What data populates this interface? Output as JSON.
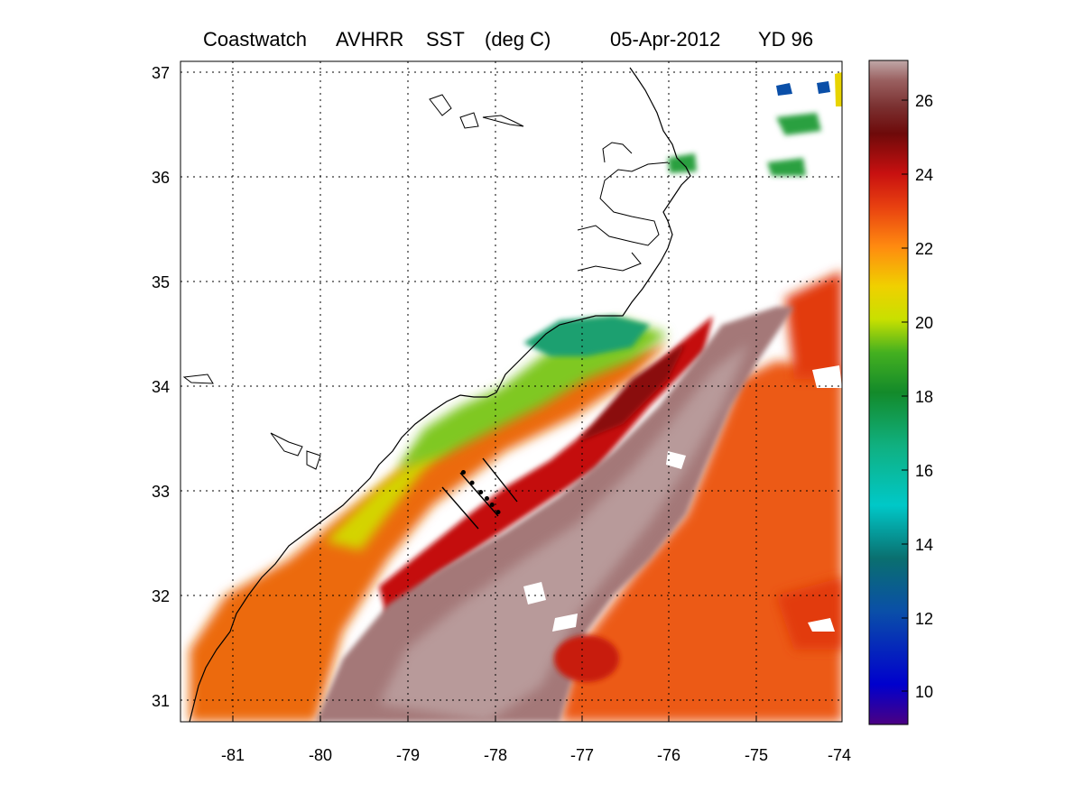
{
  "title": {
    "product": "Coastwatch",
    "sensor": "AVHRR",
    "variable": "SST",
    "units": "(deg C)",
    "date": "05-Apr-2012",
    "yearday": "YD 96"
  },
  "map": {
    "lon_range": [
      -81.6,
      -74
    ],
    "lat_range": [
      30.8,
      37.1
    ],
    "lon_ticks": [
      "-81",
      "-80",
      "-79",
      "-78",
      "-77",
      "-76",
      "-75",
      "-74"
    ],
    "lat_ticks": [
      "37",
      "36",
      "35",
      "34",
      "33",
      "32",
      "31"
    ],
    "gridlines": "dotted",
    "coastline_color": "#000000",
    "land_color": "#ffffff"
  },
  "colorbar": {
    "range": [
      9,
      27
    ],
    "ticks": [
      "26",
      "24",
      "22",
      "20",
      "18",
      "16",
      "14",
      "12",
      "10"
    ],
    "colors": [
      "#4b0082",
      "#0000cd",
      "#0a4fa8",
      "#0a6f6f",
      "#00c8c8",
      "#10b080",
      "#138a2a",
      "#44b020",
      "#c8e000",
      "#f0d000",
      "#ff8a10",
      "#e84010",
      "#c81010",
      "#6e0a0a",
      "#7a3030",
      "#9a6060",
      "#c0a8a8"
    ]
  },
  "transect": {
    "stations_lon": [
      -78.35,
      -78.25,
      -78.15,
      -78.08,
      -78.02,
      -77.95
    ],
    "stations_lat": [
      33.18,
      33.08,
      32.99,
      32.93,
      32.87,
      32.8
    ]
  }
}
